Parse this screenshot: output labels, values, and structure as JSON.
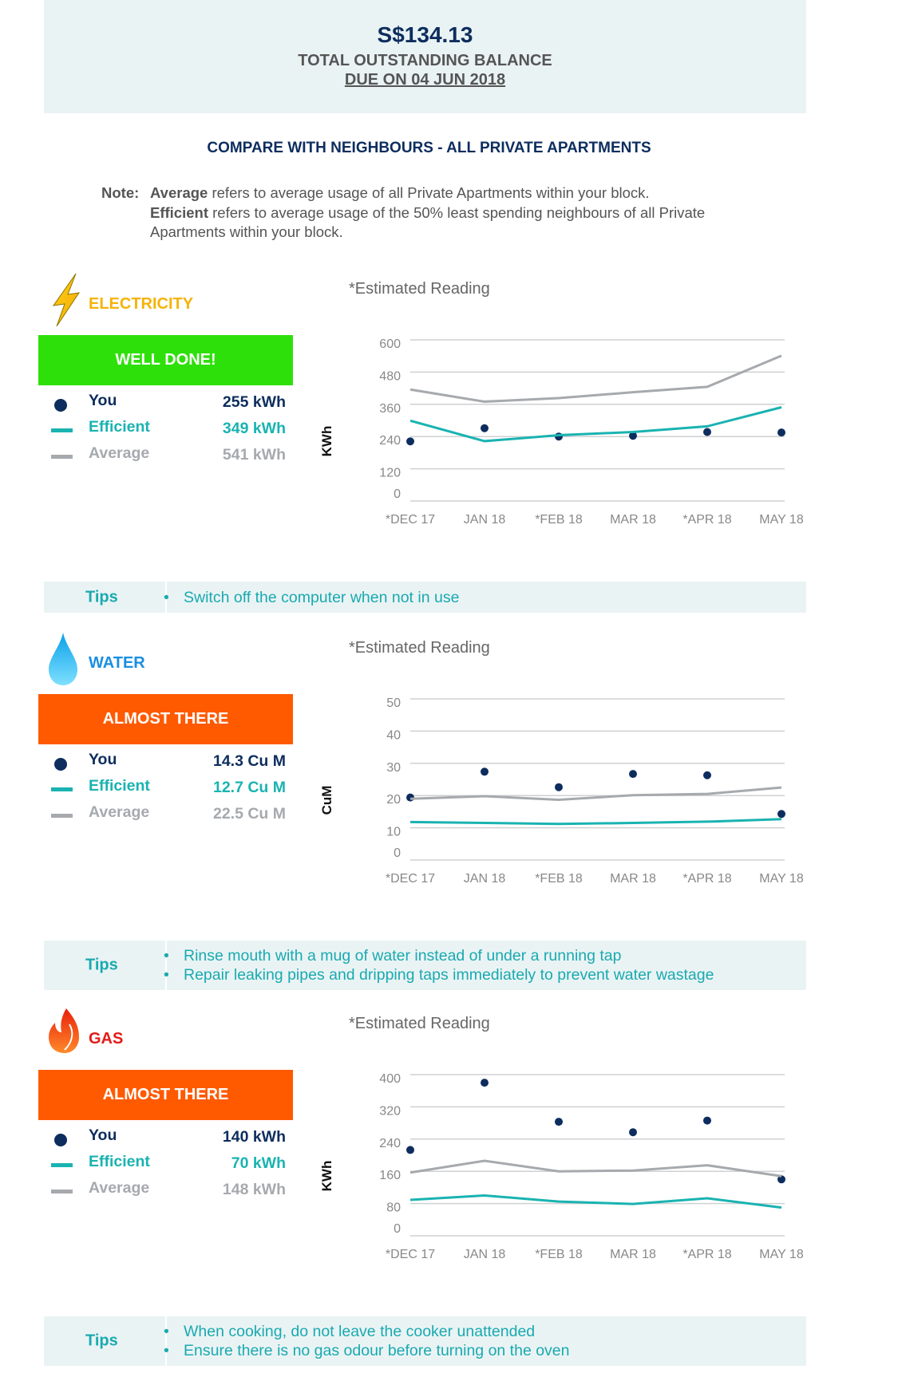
{
  "header": {
    "amount": "S$134.13",
    "label": "TOTAL OUTSTANDING BALANCE",
    "due": "DUE ON 04 JUN 2018"
  },
  "compare_title": "COMPARE WITH NEIGHBOURS - ALL PRIVATE APARTMENTS",
  "note": {
    "prefix": "Note:",
    "avg_key": "Average",
    "avg_text": " refers to average usage of all Private Apartments within your block.",
    "eff_key": "Efficient",
    "eff_text": " refers to average usage of the 50% least spending neighbours of all Private Apartments within your block."
  },
  "colors": {
    "you": "#0d2d5e",
    "efficient": "#19b3b1",
    "average": "#a6a9ad",
    "good": "#2ee00a",
    "warn": "#ff5a00",
    "electricity": "#f5b30a",
    "water": "#1a8fe0",
    "gas": "#e41b17"
  },
  "legend_labels": {
    "you": "You",
    "efficient": "Efficient",
    "average": "Average"
  },
  "sections": [
    {
      "title": "ELECTRICITY",
      "icon": "lightning-icon",
      "status": "WELL DONE!",
      "you": "255 kWh",
      "efficient": "349 kWh",
      "average": "541 kWh",
      "unit": "KWh",
      "estimated": "*Estimated Reading",
      "tips_label": "Tips",
      "tips": [
        "Switch off the computer when not in use"
      ]
    },
    {
      "title": "WATER",
      "icon": "water-drop-icon",
      "status": "ALMOST THERE",
      "you": "14.3 Cu M",
      "efficient": "12.7 Cu M",
      "average": "22.5 Cu M",
      "unit": "CuM",
      "estimated": "*Estimated Reading",
      "tips_label": "Tips",
      "tips": [
        "Rinse mouth with a mug of water instead of under a running tap",
        "Repair leaking pipes and dripping taps immediately to prevent water wastage"
      ]
    },
    {
      "title": "GAS",
      "icon": "flame-icon",
      "status": "ALMOST THERE",
      "you": "140 kWh",
      "efficient": "70 kWh",
      "average": "148 kWh",
      "unit": "KWh",
      "estimated": "*Estimated Reading",
      "tips_label": "Tips",
      "tips": [
        "When cooking, do not leave the cooker unattended",
        "Ensure there is no gas odour before turning on the oven"
      ]
    }
  ],
  "chart_data": [
    {
      "type": "line",
      "title": "Electricity",
      "ylabel": "KWh",
      "categories": [
        "*DEC 17",
        "JAN 18",
        "*FEB 18",
        "MAR 18",
        "*APR 18",
        "MAY 18"
      ],
      "yticks": [
        0,
        120,
        240,
        360,
        480,
        600
      ],
      "ylim": [
        0,
        600
      ],
      "grid": true,
      "series": [
        {
          "name": "You",
          "style": "scatter",
          "values": [
            222,
            271,
            240,
            243,
            257,
            255
          ]
        },
        {
          "name": "Efficient",
          "values": [
            299,
            223,
            245,
            257,
            278,
            349
          ]
        },
        {
          "name": "Average",
          "values": [
            415,
            370,
            383,
            405,
            425,
            541
          ]
        }
      ]
    },
    {
      "type": "line",
      "title": "Water",
      "ylabel": "CuM",
      "categories": [
        "*DEC 17",
        "JAN 18",
        "*FEB 18",
        "MAR 18",
        "*APR 18",
        "MAY 18"
      ],
      "yticks": [
        0,
        10,
        20,
        30,
        40,
        50
      ],
      "ylim": [
        0,
        50
      ],
      "grid": true,
      "series": [
        {
          "name": "You",
          "style": "scatter",
          "values": [
            19.4,
            27.4,
            22.6,
            26.7,
            26.3,
            14.3
          ]
        },
        {
          "name": "Efficient",
          "values": [
            11.8,
            11.5,
            11.2,
            11.5,
            11.9,
            12.7
          ]
        },
        {
          "name": "Average",
          "values": [
            19.0,
            19.8,
            18.7,
            20.1,
            20.5,
            22.5
          ]
        }
      ]
    },
    {
      "type": "line",
      "title": "Gas",
      "ylabel": "KWh",
      "categories": [
        "*DEC 17",
        "JAN 18",
        "*FEB 18",
        "MAR 18",
        "*APR 18",
        "MAY 18"
      ],
      "yticks": [
        0,
        80,
        160,
        240,
        320,
        400
      ],
      "ylim": [
        0,
        400
      ],
      "grid": true,
      "series": [
        {
          "name": "You",
          "style": "scatter",
          "values": [
            213,
            380,
            283,
            257,
            286,
            140
          ]
        },
        {
          "name": "Efficient",
          "values": [
            89,
            100,
            85,
            79,
            93,
            70
          ]
        },
        {
          "name": "Average",
          "values": [
            157,
            186,
            160,
            162,
            175,
            148
          ]
        }
      ]
    }
  ]
}
